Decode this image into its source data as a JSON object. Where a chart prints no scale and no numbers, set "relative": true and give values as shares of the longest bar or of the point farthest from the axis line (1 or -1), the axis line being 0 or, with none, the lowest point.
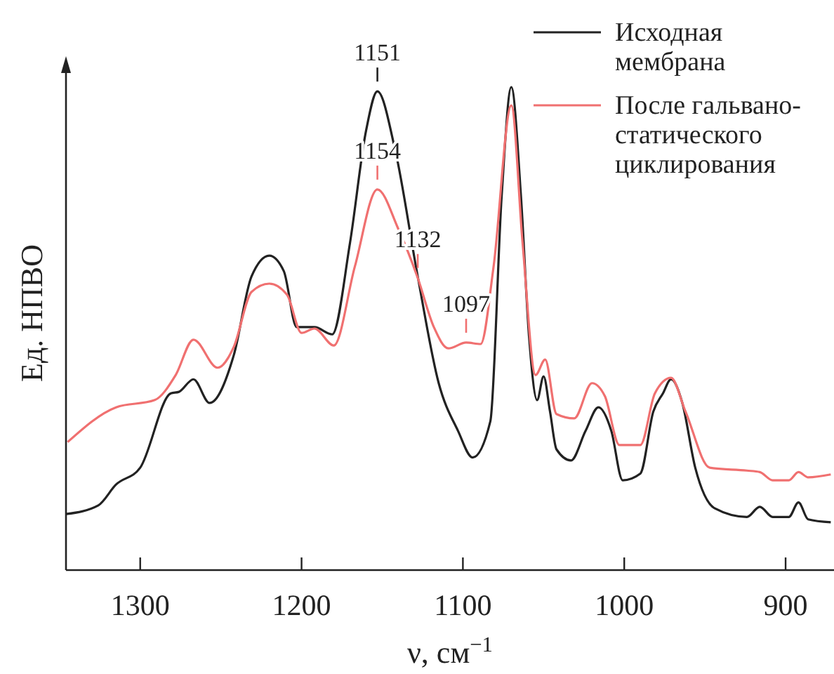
{
  "chart_data": {
    "type": "line",
    "relative": true,
    "xlabel": "ν, см$^{−1}$",
    "ylabel": "Ед. НПВО",
    "xlim": [
      1346,
      870
    ],
    "xticks": [
      1300,
      1200,
      1100,
      1000,
      900
    ],
    "legend": "top right",
    "grid": false,
    "series": [
      {
        "name": "Исходная мембрана",
        "color": "#222222",
        "x": [
          1346,
          1326,
          1315,
          1300,
          1281,
          1276,
          1267,
          1257,
          1242,
          1231,
          1220,
          1211,
          1203,
          1192,
          1181,
          1170,
          1160,
          1153,
          1142,
          1128,
          1115,
          1103,
          1094,
          1083,
          1076,
          1070,
          1064,
          1059,
          1054,
          1050,
          1046,
          1042,
          1033,
          1024,
          1016,
          1008,
          1001,
          990,
          982,
          976,
          971,
          964,
          956,
          944,
          924,
          916,
          908,
          898,
          892,
          886,
          872
        ],
        "values": [
          0.116,
          0.134,
          0.177,
          0.212,
          0.366,
          0.369,
          0.395,
          0.346,
          0.445,
          0.608,
          0.651,
          0.619,
          0.503,
          0.503,
          0.488,
          0.677,
          0.91,
          0.991,
          0.87,
          0.608,
          0.387,
          0.288,
          0.233,
          0.308,
          0.773,
          1,
          0.773,
          0.483,
          0.352,
          0.401,
          0.328,
          0.25,
          0.227,
          0.288,
          0.337,
          0.288,
          0.186,
          0.2,
          0.328,
          0.366,
          0.395,
          0.346,
          0.212,
          0.128,
          0.11,
          0.131,
          0.11,
          0.11,
          0.14,
          0.105,
          0.099
        ]
      },
      {
        "name": "После гальвано-статического циклирования",
        "color": "#f07070",
        "x": [
          1345,
          1315,
          1291,
          1278,
          1267,
          1252,
          1242,
          1231,
          1220,
          1209,
          1200,
          1192,
          1180,
          1167,
          1153,
          1140,
          1128,
          1118,
          1109,
          1098,
          1089,
          1081,
          1070,
          1063,
          1055,
          1049,
          1042,
          1031,
          1020,
          1012,
          1003,
          990,
          981,
          971,
          962,
          947,
          924,
          916,
          908,
          898,
          892,
          886,
          872
        ],
        "values": [
          0.265,
          0.337,
          0.352,
          0.404,
          0.477,
          0.419,
          0.462,
          0.576,
          0.593,
          0.57,
          0.491,
          0.5,
          0.465,
          0.628,
          0.788,
          0.706,
          0.605,
          0.503,
          0.459,
          0.471,
          0.468,
          0.628,
          0.962,
          0.677,
          0.404,
          0.436,
          0.323,
          0.314,
          0.387,
          0.36,
          0.259,
          0.259,
          0.366,
          0.398,
          0.328,
          0.212,
          0.206,
          0.203,
          0.186,
          0.186,
          0.203,
          0.192,
          0.198
        ]
      }
    ],
    "annotations": [
      {
        "text": "1151",
        "x": 1153,
        "y": 0.991
      },
      {
        "text": "1154",
        "x": 1153,
        "y": 0.788
      },
      {
        "text": "1132",
        "x": 1128,
        "y": 0.605
      },
      {
        "text": "1097",
        "x": 1098,
        "y": 0.471
      }
    ]
  }
}
